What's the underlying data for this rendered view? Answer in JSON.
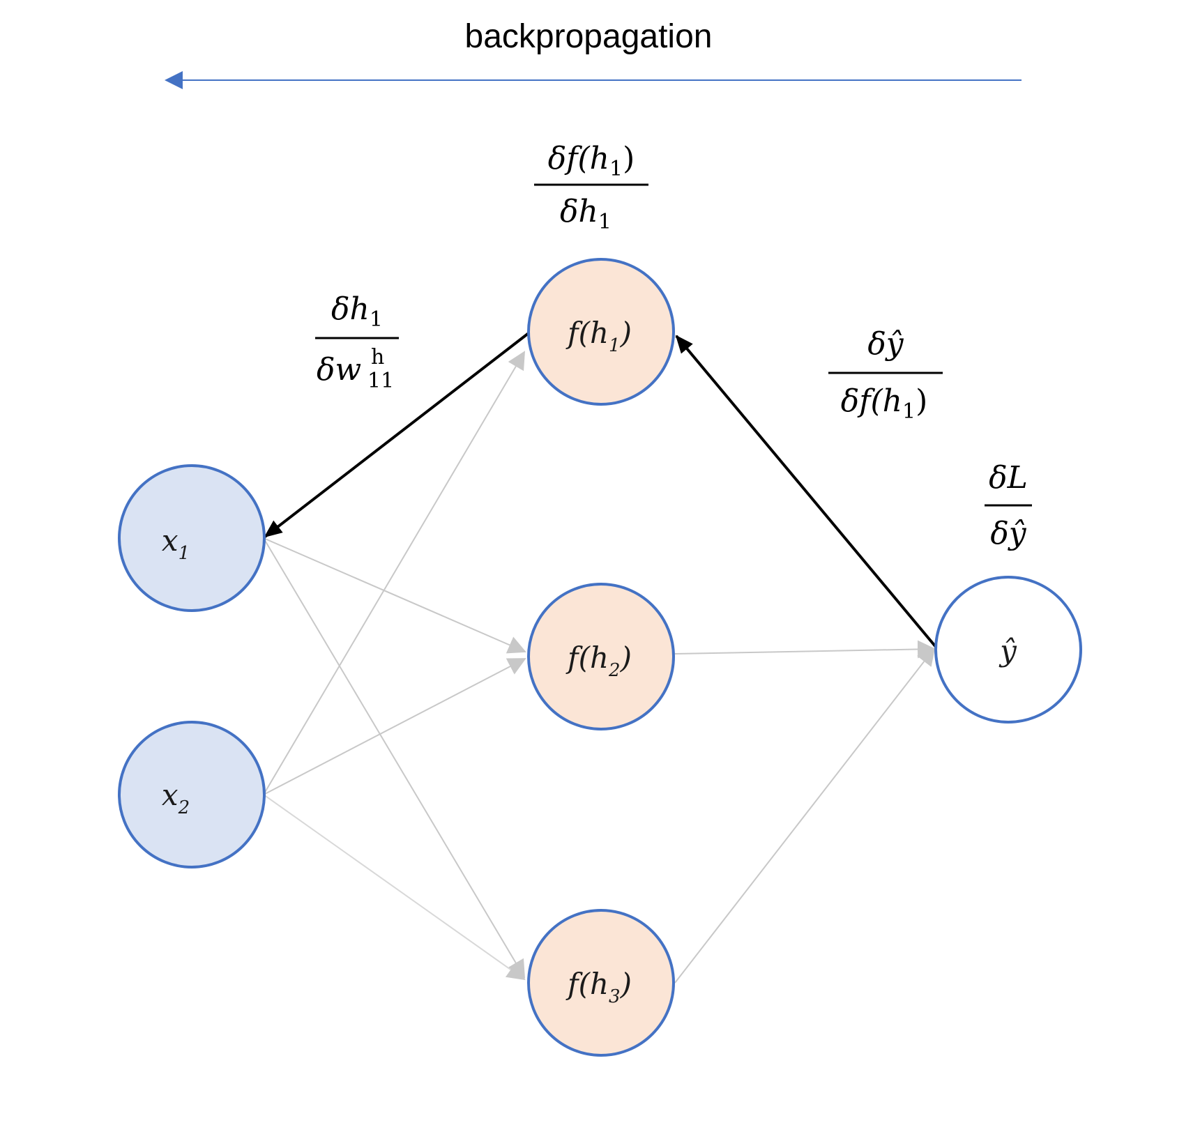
{
  "title": "backpropagation",
  "colors": {
    "accent": "#4472c4",
    "input_fill": "#dae3f3",
    "hidden_fill": "#fbe5d6",
    "output_fill": "#ffffff",
    "edge_gray": "#c8c8c8",
    "edge_black": "#000000"
  },
  "nodes": {
    "x1": {
      "base": "x",
      "sub": "1"
    },
    "x2": {
      "base": "x",
      "sub": "2"
    },
    "h1": {
      "base": "f(h",
      "sub": "1",
      "close": ")"
    },
    "h2": {
      "base": "f(h",
      "sub": "2",
      "close": ")"
    },
    "h3": {
      "base": "f(h",
      "sub": "3",
      "close": ")"
    },
    "yhat": {
      "base": "ŷ"
    }
  },
  "gradients": {
    "g1": {
      "num": "δf(h",
      "num_sub": "1",
      "num_close": ")",
      "den": "δh",
      "den_sub": "1"
    },
    "g2": {
      "num": "δh",
      "num_sub": "1",
      "den": "δw",
      "den_sup": "h",
      "den_sub": "11"
    },
    "g3": {
      "num": "δŷ",
      "den": "δf(h",
      "den_sub": "1",
      "den_close": ")"
    },
    "g4": {
      "num": "δL",
      "den": "δŷ"
    }
  }
}
